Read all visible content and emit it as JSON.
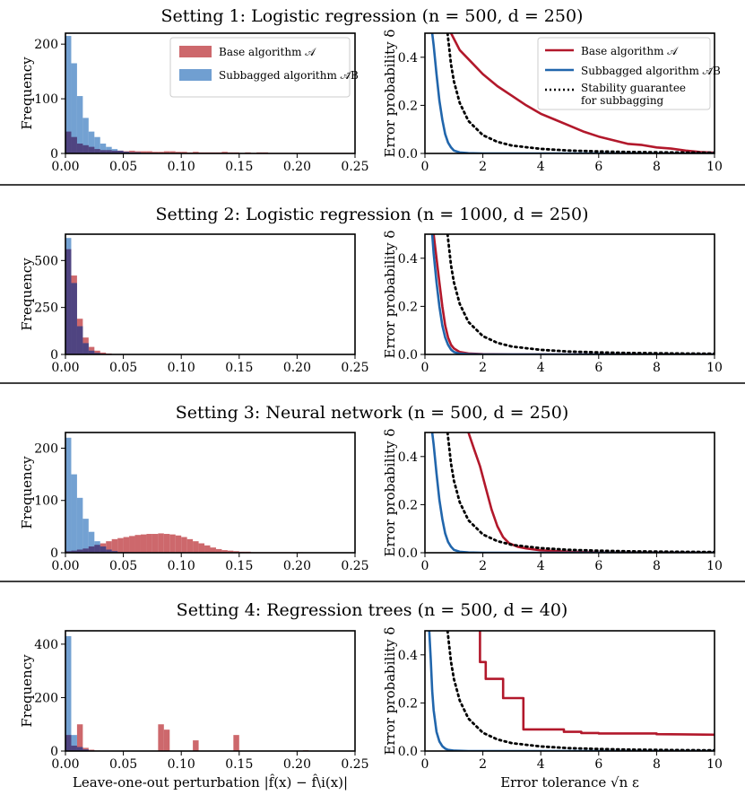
{
  "settings": [
    {
      "title": "Setting 1: Logistic regression (n = 500, d = 250)"
    },
    {
      "title": "Setting 2: Logistic regression (n = 1000, d = 250)"
    },
    {
      "title": "Setting 3: Neural network (n = 500, d = 250)"
    },
    {
      "title": "Setting 4: Regression trees (n = 500, d = 40)"
    }
  ],
  "legend": {
    "base": "Base algorithm 𝒜",
    "subbagged": "Subbagged algorithm 𝒜̃B",
    "guarantee_line1": "Stability guarantee",
    "guarantee_line2": "for subbagging"
  },
  "colors": {
    "base": "#b2182b",
    "base_hist": "#c44e52",
    "subbagged": "#2166ac",
    "subbagged_hist": "#4c87c5",
    "overlap_hist": "#4b3a78",
    "guarantee": "#000000"
  },
  "chart_data": [
    {
      "type": "bar",
      "panel": "histogram",
      "setting": 1,
      "xlabel": "",
      "ylabel": "Frequency",
      "xlim": [
        0,
        0.25
      ],
      "ylim": [
        0,
        220
      ],
      "xticks": [
        "0.00",
        "0.05",
        "0.10",
        "0.15",
        "0.20",
        "0.25"
      ],
      "yticks": [
        0,
        100,
        200
      ],
      "bin_width": 0.005,
      "series": [
        {
          "name": "Base algorithm 𝒜",
          "values": [
            40,
            30,
            18,
            15,
            12,
            8,
            6,
            6,
            5,
            5,
            4,
            5,
            4,
            4,
            4,
            3,
            3,
            4,
            4,
            3,
            3,
            2,
            3,
            2,
            2,
            2,
            2,
            3,
            2,
            2,
            1,
            2,
            1,
            2,
            2,
            1,
            1,
            1,
            1,
            1,
            1,
            1,
            1,
            1,
            1,
            1,
            1,
            1,
            1,
            1
          ]
        },
        {
          "name": "Subbagged algorithm 𝒜̃B",
          "values": [
            215,
            165,
            105,
            65,
            40,
            30,
            18,
            12,
            8,
            5,
            3,
            2,
            2,
            1,
            1,
            1,
            0,
            0,
            0,
            0,
            0,
            0,
            0,
            0,
            0,
            0,
            0,
            0,
            0,
            0,
            0,
            0,
            0,
            0,
            0,
            0,
            0,
            0,
            0,
            0,
            0,
            0,
            0,
            0,
            0,
            0,
            0,
            0,
            0,
            0
          ]
        }
      ]
    },
    {
      "type": "line",
      "panel": "error",
      "setting": 1,
      "xlabel": "",
      "ylabel": "Error probability δ",
      "xlim": [
        0,
        10
      ],
      "ylim": [
        0,
        0.5
      ],
      "xticks": [
        0,
        2,
        4,
        6,
        8,
        10
      ],
      "yticks": [
        "0.0",
        "0.2",
        "0.4"
      ],
      "series": [
        {
          "name": "Base algorithm 𝒜",
          "x": [
            0.9,
            1.2,
            1.6,
            2,
            2.5,
            3,
            3.5,
            4,
            4.5,
            5,
            5.5,
            6,
            6.5,
            7,
            7.5,
            8,
            8.5,
            9,
            9.5,
            10
          ],
          "y": [
            0.5,
            0.43,
            0.38,
            0.33,
            0.28,
            0.24,
            0.2,
            0.165,
            0.14,
            0.115,
            0.09,
            0.07,
            0.055,
            0.04,
            0.035,
            0.025,
            0.02,
            0.012,
            0.006,
            0.003
          ]
        },
        {
          "name": "Subbagged algorithm 𝒜̃B",
          "x": [
            0.25,
            0.3,
            0.4,
            0.5,
            0.6,
            0.7,
            0.8,
            0.9,
            1.0,
            1.2,
            1.5,
            2,
            3,
            4,
            6,
            8,
            10
          ],
          "y": [
            0.5,
            0.45,
            0.33,
            0.22,
            0.14,
            0.08,
            0.045,
            0.025,
            0.012,
            0.004,
            0.001,
            0,
            0,
            0,
            0,
            0,
            0
          ]
        },
        {
          "name": "Stability guarantee for subbagging",
          "guarantee": true,
          "x": [
            0.78,
            0.9,
            1,
            1.2,
            1.5,
            2,
            2.5,
            3,
            4,
            5,
            6,
            7,
            8,
            9,
            10
          ],
          "y": [
            0.5,
            0.37,
            0.3,
            0.21,
            0.135,
            0.076,
            0.048,
            0.033,
            0.019,
            0.012,
            0.0085,
            0.006,
            0.0047,
            0.0037,
            0.003
          ]
        }
      ]
    },
    {
      "type": "bar",
      "panel": "histogram",
      "setting": 2,
      "xlabel": "",
      "ylabel": "Frequency",
      "xlim": [
        0,
        0.25
      ],
      "ylim": [
        0,
        640
      ],
      "xticks": [
        "0.00",
        "0.05",
        "0.10",
        "0.15",
        "0.20",
        "0.25"
      ],
      "yticks": [
        0,
        250,
        500
      ],
      "bin_width": 0.005,
      "series": [
        {
          "name": "Base algorithm 𝒜",
          "values": [
            560,
            420,
            190,
            90,
            40,
            20,
            10,
            5,
            2,
            1,
            0,
            0,
            0,
            0,
            0,
            0,
            0,
            0,
            0,
            0,
            0,
            0,
            0,
            0,
            0,
            0,
            0,
            0,
            0,
            0,
            0,
            0,
            0,
            0,
            0,
            0,
            0,
            0,
            0,
            0,
            0,
            0,
            0,
            0,
            0,
            0,
            0,
            0,
            0,
            0
          ]
        },
        {
          "name": "Subbagged algorithm 𝒜̃B",
          "values": [
            620,
            380,
            150,
            60,
            20,
            8,
            3,
            1,
            0,
            0,
            0,
            0,
            0,
            0,
            0,
            0,
            0,
            0,
            0,
            0,
            0,
            0,
            0,
            0,
            0,
            0,
            0,
            0,
            0,
            0,
            0,
            0,
            0,
            0,
            0,
            0,
            0,
            0,
            0,
            0,
            0,
            0,
            0,
            0,
            0,
            0,
            0,
            0,
            0,
            0
          ]
        }
      ]
    },
    {
      "type": "line",
      "panel": "error",
      "setting": 2,
      "xlabel": "",
      "ylabel": "Error probability δ",
      "xlim": [
        0,
        10
      ],
      "ylim": [
        0,
        0.5
      ],
      "xticks": [
        0,
        2,
        4,
        6,
        8,
        10
      ],
      "yticks": [
        "0.0",
        "0.2",
        "0.4"
      ],
      "series": [
        {
          "name": "Base algorithm 𝒜",
          "x": [
            0.3,
            0.4,
            0.5,
            0.6,
            0.7,
            0.8,
            0.9,
            1.0,
            1.2,
            1.5,
            2,
            3,
            10
          ],
          "y": [
            0.5,
            0.4,
            0.3,
            0.2,
            0.12,
            0.07,
            0.04,
            0.025,
            0.01,
            0.004,
            0.001,
            0,
            0
          ]
        },
        {
          "name": "Subbagged algorithm 𝒜̃B",
          "x": [
            0.25,
            0.3,
            0.4,
            0.5,
            0.6,
            0.7,
            0.8,
            0.9,
            1.0,
            1.2,
            1.5,
            2,
            10
          ],
          "y": [
            0.5,
            0.42,
            0.3,
            0.2,
            0.12,
            0.07,
            0.04,
            0.02,
            0.01,
            0.003,
            0.001,
            0,
            0
          ]
        },
        {
          "name": "Stability guarantee for subbagging",
          "guarantee": true,
          "x": [
            0.78,
            0.9,
            1,
            1.2,
            1.5,
            2,
            2.5,
            3,
            4,
            5,
            6,
            7,
            8,
            9,
            10
          ],
          "y": [
            0.5,
            0.37,
            0.3,
            0.21,
            0.135,
            0.076,
            0.048,
            0.033,
            0.019,
            0.012,
            0.0085,
            0.006,
            0.0047,
            0.0037,
            0.003
          ]
        }
      ]
    },
    {
      "type": "bar",
      "panel": "histogram",
      "setting": 3,
      "xlabel": "",
      "ylabel": "Frequency",
      "xlim": [
        0,
        0.25
      ],
      "ylim": [
        0,
        230
      ],
      "xticks": [
        "0.00",
        "0.05",
        "0.10",
        "0.15",
        "0.20",
        "0.25"
      ],
      "yticks": [
        0,
        100,
        200
      ],
      "bin_width": 0.005,
      "series": [
        {
          "name": "Base algorithm 𝒜",
          "values": [
            3,
            4,
            6,
            8,
            12,
            15,
            18,
            22,
            26,
            28,
            30,
            32,
            34,
            35,
            36,
            36,
            37,
            36,
            35,
            33,
            30,
            26,
            22,
            18,
            14,
            10,
            7,
            5,
            4,
            3,
            2,
            2,
            1,
            1,
            1,
            1,
            1,
            1,
            1,
            0,
            1,
            0,
            0,
            0,
            0,
            0,
            0,
            0,
            0,
            0
          ]
        },
        {
          "name": "Subbagged algorithm 𝒜̃B",
          "values": [
            220,
            150,
            105,
            65,
            40,
            22,
            12,
            6,
            3,
            1,
            1,
            0,
            0,
            0,
            0,
            0,
            0,
            0,
            0,
            0,
            0,
            0,
            0,
            0,
            0,
            0,
            0,
            0,
            0,
            0,
            0,
            0,
            0,
            0,
            0,
            0,
            0,
            0,
            0,
            0,
            0,
            0,
            0,
            0,
            0,
            0,
            0,
            0,
            0,
            0
          ]
        }
      ]
    },
    {
      "type": "line",
      "panel": "error",
      "setting": 3,
      "xlabel": "",
      "ylabel": "Error probability δ",
      "xlim": [
        0,
        10
      ],
      "ylim": [
        0,
        0.5
      ],
      "xticks": [
        0,
        2,
        4,
        6,
        8,
        10
      ],
      "yticks": [
        "0.0",
        "0.2",
        "0.4"
      ],
      "series": [
        {
          "name": "Base algorithm 𝒜",
          "x": [
            1.5,
            1.7,
            1.9,
            2.1,
            2.3,
            2.5,
            2.7,
            2.9,
            3.2,
            3.5,
            4,
            5,
            6,
            10
          ],
          "y": [
            0.5,
            0.43,
            0.36,
            0.27,
            0.18,
            0.11,
            0.065,
            0.04,
            0.025,
            0.018,
            0.01,
            0.004,
            0.001,
            0
          ]
        },
        {
          "name": "Subbagged algorithm 𝒜̃B",
          "x": [
            0.25,
            0.3,
            0.4,
            0.5,
            0.6,
            0.7,
            0.8,
            0.9,
            1.0,
            1.2,
            1.5,
            2,
            10
          ],
          "y": [
            0.5,
            0.45,
            0.33,
            0.22,
            0.14,
            0.08,
            0.045,
            0.025,
            0.012,
            0.004,
            0.001,
            0,
            0
          ]
        },
        {
          "name": "Stability guarantee for subbagging",
          "guarantee": true,
          "x": [
            0.78,
            0.9,
            1,
            1.2,
            1.5,
            2,
            2.5,
            3,
            4,
            5,
            6,
            7,
            8,
            9,
            10
          ],
          "y": [
            0.5,
            0.37,
            0.3,
            0.21,
            0.135,
            0.076,
            0.048,
            0.033,
            0.019,
            0.012,
            0.0085,
            0.006,
            0.0047,
            0.0037,
            0.003
          ]
        }
      ]
    },
    {
      "type": "bar",
      "panel": "histogram",
      "setting": 4,
      "xlabel": "Leave-one-out perturbation |f̂(x) − f̂\\i(x)|",
      "ylabel": "Frequency",
      "xlim": [
        0,
        0.25
      ],
      "ylim": [
        0,
        450
      ],
      "xticks": [
        "0.00",
        "0.05",
        "0.10",
        "0.15",
        "0.20",
        "0.25"
      ],
      "yticks": [
        0,
        200,
        400
      ],
      "bin_width": 0.005,
      "series": [
        {
          "name": "Base algorithm 𝒜",
          "values": [
            60,
            20,
            100,
            12,
            5,
            2,
            1,
            1,
            0,
            0,
            0,
            0,
            0,
            0,
            0,
            0,
            100,
            80,
            0,
            0,
            0,
            0,
            40,
            0,
            0,
            0,
            0,
            0,
            0,
            60,
            0,
            0,
            0,
            0,
            0,
            0,
            0,
            0,
            0,
            0,
            0,
            3,
            0,
            0,
            0,
            0,
            0,
            0,
            0,
            0
          ]
        },
        {
          "name": "Subbagged algorithm 𝒜̃B",
          "values": [
            430,
            60,
            15,
            6,
            2,
            1,
            0,
            0,
            0,
            0,
            0,
            0,
            0,
            0,
            0,
            0,
            0,
            0,
            0,
            0,
            0,
            0,
            0,
            0,
            0,
            0,
            0,
            0,
            0,
            0,
            0,
            0,
            0,
            0,
            0,
            0,
            0,
            0,
            0,
            0,
            0,
            0,
            0,
            0,
            0,
            0,
            0,
            0,
            0,
            0
          ]
        }
      ]
    },
    {
      "type": "line",
      "panel": "error",
      "setting": 4,
      "xlabel": "Error tolerance √n ε",
      "ylabel": "Error probability δ",
      "xlim": [
        0,
        10
      ],
      "ylim": [
        0,
        0.5
      ],
      "xticks": [
        0,
        2,
        4,
        6,
        8,
        10
      ],
      "yticks": [
        "0.0",
        "0.2",
        "0.4"
      ],
      "step": true,
      "series": [
        {
          "name": "Base algorithm 𝒜",
          "x": [
            1.9,
            1.9,
            2.1,
            2.1,
            2.7,
            2.7,
            3.4,
            3.4,
            4.8,
            4.8,
            5.4,
            5.4,
            6,
            6,
            8,
            8,
            10
          ],
          "y": [
            0.5,
            0.37,
            0.37,
            0.3,
            0.3,
            0.22,
            0.22,
            0.09,
            0.09,
            0.08,
            0.08,
            0.075,
            0.075,
            0.073,
            0.073,
            0.07,
            0.068
          ]
        },
        {
          "name": "Subbagged algorithm 𝒜̃B",
          "x": [
            0.15,
            0.2,
            0.25,
            0.3,
            0.4,
            0.5,
            0.6,
            0.7,
            0.8,
            1.0,
            1.5,
            10
          ],
          "y": [
            0.5,
            0.38,
            0.25,
            0.17,
            0.08,
            0.04,
            0.02,
            0.01,
            0.005,
            0.002,
            0,
            0
          ]
        },
        {
          "name": "Stability guarantee for subbagging",
          "guarantee": true,
          "x": [
            0.78,
            0.9,
            1,
            1.2,
            1.5,
            2,
            2.5,
            3,
            4,
            5,
            6,
            7,
            8,
            9,
            10
          ],
          "y": [
            0.5,
            0.37,
            0.3,
            0.21,
            0.135,
            0.076,
            0.048,
            0.033,
            0.019,
            0.012,
            0.0085,
            0.006,
            0.0047,
            0.0037,
            0.003
          ]
        }
      ]
    }
  ]
}
